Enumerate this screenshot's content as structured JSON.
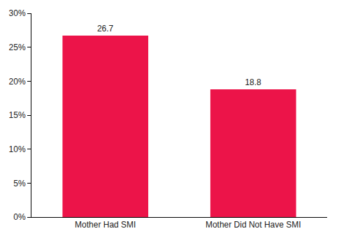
{
  "chart_data": {
    "type": "bar",
    "categories": [
      "Mother Had SMI",
      "Mother Did Not Have SMI"
    ],
    "values": [
      26.7,
      18.8
    ],
    "color": "#ec1449",
    "ylim": [
      0,
      30
    ],
    "yticks": [
      {
        "value": 0,
        "label": "0%"
      },
      {
        "value": 5,
        "label": "5%"
      },
      {
        "value": 10,
        "label": "10%"
      },
      {
        "value": 15,
        "label": "15%"
      },
      {
        "value": 20,
        "label": "20%"
      },
      {
        "value": 25,
        "label": "25%"
      },
      {
        "value": 30,
        "label": "30%"
      }
    ],
    "grid": false,
    "data_labels": true
  }
}
